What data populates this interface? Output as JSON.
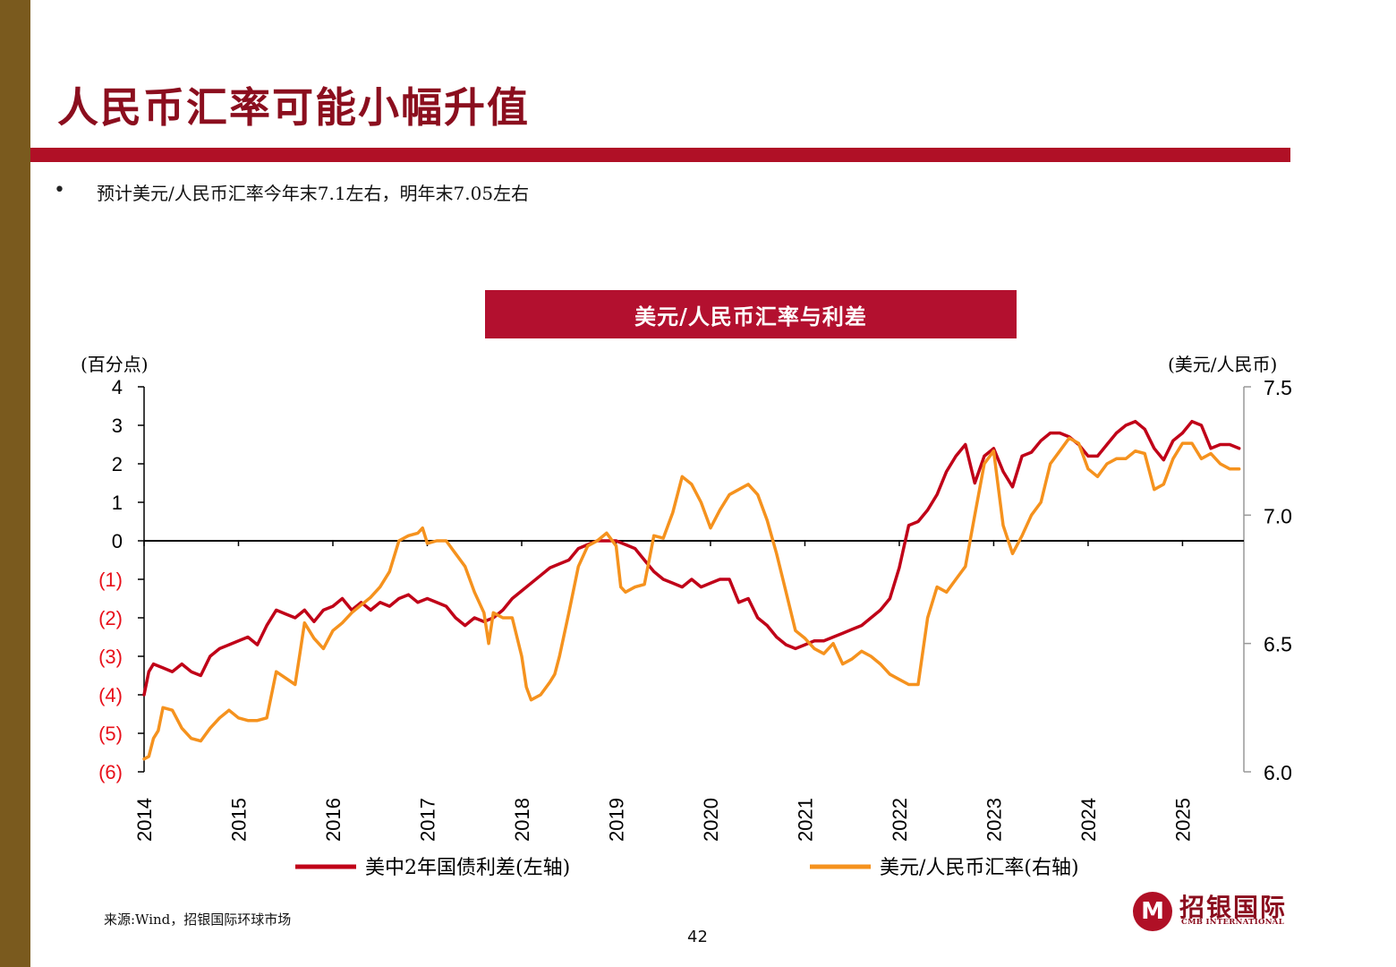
{
  "title": "人民币汇率可能小幅升值",
  "bullet": "预计美元/人民币汇率今年末7.1左右，明年末7.05左右",
  "source": "来源:Wind，招银国际环球市场",
  "page_number": "42",
  "logo": {
    "cn": "招银国际",
    "en": "CMB INTERNATIONAL",
    "icon": "cmb-logo-icon"
  },
  "colors": {
    "sidebar": "#7a5a1e",
    "accent": "#b01026",
    "spread_line": "#c00018",
    "fx_line": "#f5921e",
    "negative_tick": "#e8101a"
  },
  "chart_data": {
    "type": "line",
    "title": "美元/人民币汇率与利差",
    "left_axis_unit": "(百分点)",
    "right_axis_unit": "(美元/人民币)",
    "left_ylim": [
      -6,
      4
    ],
    "right_ylim": [
      6.0,
      7.5
    ],
    "left_ticks": [
      "4",
      "3",
      "2",
      "1",
      "0",
      "(1)",
      "(2)",
      "(3)",
      "(4)",
      "(5)",
      "(6)"
    ],
    "left_tick_values": [
      4,
      3,
      2,
      1,
      0,
      -1,
      -2,
      -3,
      -4,
      -5,
      -6
    ],
    "right_ticks": [
      "7.5",
      "7.0",
      "6.5",
      "6.0"
    ],
    "right_tick_values": [
      7.5,
      7.0,
      6.5,
      6.0
    ],
    "x_ticks": [
      "2014",
      "2015",
      "2016",
      "2017",
      "2018",
      "2019",
      "2020",
      "2021",
      "2022",
      "2023",
      "2024",
      "2025"
    ],
    "xlim": [
      2014.0,
      2025.65
    ],
    "series": [
      {
        "name": "美中2年国债利差(左轴)",
        "axis": "left",
        "x": [
          2014.0,
          2014.05,
          2014.1,
          2014.2,
          2014.3,
          2014.4,
          2014.5,
          2014.6,
          2014.7,
          2014.8,
          2014.9,
          2015.0,
          2015.1,
          2015.2,
          2015.3,
          2015.4,
          2015.5,
          2015.6,
          2015.7,
          2015.8,
          2015.9,
          2016.0,
          2016.1,
          2016.2,
          2016.3,
          2016.4,
          2016.5,
          2016.6,
          2016.7,
          2016.8,
          2016.9,
          2017.0,
          2017.1,
          2017.2,
          2017.3,
          2017.4,
          2017.5,
          2017.6,
          2017.7,
          2017.8,
          2017.9,
          2018.0,
          2018.1,
          2018.2,
          2018.3,
          2018.4,
          2018.5,
          2018.6,
          2018.7,
          2018.8,
          2018.9,
          2019.0,
          2019.1,
          2019.2,
          2019.3,
          2019.4,
          2019.5,
          2019.6,
          2019.7,
          2019.8,
          2019.9,
          2020.0,
          2020.1,
          2020.2,
          2020.3,
          2020.4,
          2020.5,
          2020.6,
          2020.7,
          2020.8,
          2020.9,
          2021.0,
          2021.1,
          2021.2,
          2021.3,
          2021.4,
          2021.5,
          2021.6,
          2021.7,
          2021.8,
          2021.9,
          2022.0,
          2022.1,
          2022.2,
          2022.3,
          2022.4,
          2022.5,
          2022.6,
          2022.7,
          2022.8,
          2022.9,
          2023.0,
          2023.1,
          2023.2,
          2023.3,
          2023.4,
          2023.5,
          2023.6,
          2023.7,
          2023.8,
          2023.9,
          2024.0,
          2024.1,
          2024.2,
          2024.3,
          2024.4,
          2024.5,
          2024.6,
          2024.7,
          2024.8,
          2024.9,
          2025.0,
          2025.1,
          2025.2,
          2025.3,
          2025.4,
          2025.5,
          2025.6
        ],
        "values": [
          -4.0,
          -3.4,
          -3.2,
          -3.3,
          -3.4,
          -3.2,
          -3.4,
          -3.5,
          -3.0,
          -2.8,
          -2.7,
          -2.6,
          -2.5,
          -2.7,
          -2.2,
          -1.8,
          -1.9,
          -2.0,
          -1.8,
          -2.1,
          -1.8,
          -1.7,
          -1.5,
          -1.8,
          -1.6,
          -1.8,
          -1.6,
          -1.7,
          -1.5,
          -1.4,
          -1.6,
          -1.5,
          -1.6,
          -1.7,
          -2.0,
          -2.2,
          -2.0,
          -2.1,
          -2.0,
          -1.8,
          -1.5,
          -1.3,
          -1.1,
          -0.9,
          -0.7,
          -0.6,
          -0.5,
          -0.2,
          -0.1,
          0.0,
          0.0,
          0.0,
          -0.1,
          -0.2,
          -0.5,
          -0.8,
          -1.0,
          -1.1,
          -1.2,
          -1.0,
          -1.2,
          -1.1,
          -1.0,
          -1.0,
          -1.6,
          -1.5,
          -2.0,
          -2.2,
          -2.5,
          -2.7,
          -2.8,
          -2.7,
          -2.6,
          -2.6,
          -2.5,
          -2.4,
          -2.3,
          -2.2,
          -2.0,
          -1.8,
          -1.5,
          -0.7,
          0.4,
          0.5,
          0.8,
          1.2,
          1.8,
          2.2,
          2.5,
          1.5,
          2.2,
          2.4,
          1.8,
          1.4,
          2.2,
          2.3,
          2.6,
          2.8,
          2.8,
          2.7,
          2.5,
          2.2,
          2.2,
          2.5,
          2.8,
          3.0,
          3.1,
          2.9,
          2.4,
          2.1,
          2.6,
          2.8,
          3.1,
          3.0,
          2.4,
          2.5,
          2.5,
          2.4
        ]
      },
      {
        "name": "美元/人民币汇率(右轴)",
        "axis": "right",
        "x": [
          2014.0,
          2014.05,
          2014.1,
          2014.15,
          2014.2,
          2014.3,
          2014.4,
          2014.5,
          2014.6,
          2014.7,
          2014.8,
          2014.9,
          2015.0,
          2015.1,
          2015.2,
          2015.3,
          2015.4,
          2015.6,
          2015.65,
          2015.7,
          2015.8,
          2015.9,
          2016.0,
          2016.1,
          2016.2,
          2016.3,
          2016.4,
          2016.5,
          2016.6,
          2016.7,
          2016.8,
          2016.9,
          2016.95,
          2017.0,
          2017.1,
          2017.2,
          2017.3,
          2017.4,
          2017.5,
          2017.6,
          2017.65,
          2017.7,
          2017.8,
          2017.9,
          2018.0,
          2018.05,
          2018.1,
          2018.2,
          2018.3,
          2018.35,
          2018.4,
          2018.5,
          2018.6,
          2018.7,
          2018.8,
          2018.9,
          2019.0,
          2019.05,
          2019.1,
          2019.2,
          2019.3,
          2019.4,
          2019.5,
          2019.6,
          2019.7,
          2019.8,
          2019.9,
          2020.0,
          2020.1,
          2020.2,
          2020.3,
          2020.4,
          2020.5,
          2020.6,
          2020.7,
          2020.8,
          2020.9,
          2021.0,
          2021.1,
          2021.2,
          2021.3,
          2021.4,
          2021.5,
          2021.6,
          2021.7,
          2021.8,
          2021.9,
          2022.0,
          2022.1,
          2022.2,
          2022.3,
          2022.4,
          2022.5,
          2022.6,
          2022.7,
          2022.8,
          2022.9,
          2023.0,
          2023.1,
          2023.2,
          2023.3,
          2023.4,
          2023.5,
          2023.6,
          2023.7,
          2023.8,
          2023.9,
          2024.0,
          2024.1,
          2024.2,
          2024.3,
          2024.4,
          2024.5,
          2024.6,
          2024.7,
          2024.8,
          2024.9,
          2025.0,
          2025.1,
          2025.2,
          2025.3,
          2025.4,
          2025.5,
          2025.6
        ],
        "values": [
          6.05,
          6.06,
          6.13,
          6.16,
          6.25,
          6.24,
          6.17,
          6.13,
          6.12,
          6.17,
          6.21,
          6.24,
          6.21,
          6.2,
          6.2,
          6.21,
          6.39,
          6.34,
          6.46,
          6.58,
          6.52,
          6.48,
          6.55,
          6.58,
          6.62,
          6.65,
          6.68,
          6.72,
          6.78,
          6.9,
          6.92,
          6.93,
          6.95,
          6.89,
          6.9,
          6.9,
          6.85,
          6.8,
          6.7,
          6.62,
          6.5,
          6.62,
          6.6,
          6.6,
          6.45,
          6.33,
          6.28,
          6.3,
          6.35,
          6.38,
          6.45,
          6.62,
          6.8,
          6.88,
          6.9,
          6.93,
          6.88,
          6.72,
          6.7,
          6.72,
          6.73,
          6.92,
          6.91,
          7.01,
          7.15,
          7.12,
          7.05,
          6.95,
          7.02,
          7.08,
          7.1,
          7.12,
          7.08,
          6.98,
          6.85,
          6.7,
          6.55,
          6.52,
          6.48,
          6.46,
          6.5,
          6.42,
          6.44,
          6.47,
          6.45,
          6.42,
          6.38,
          6.36,
          6.34,
          6.34,
          6.6,
          6.72,
          6.7,
          6.75,
          6.8,
          7.0,
          7.2,
          7.25,
          6.96,
          6.85,
          6.92,
          7.0,
          7.05,
          7.2,
          7.25,
          7.3,
          7.28,
          7.18,
          7.15,
          7.2,
          7.22,
          7.22,
          7.25,
          7.24,
          7.1,
          7.12,
          7.22,
          7.28,
          7.28,
          7.22,
          7.24,
          7.2,
          7.18,
          7.18
        ]
      }
    ],
    "grid": false,
    "legend_position": "bottom"
  }
}
